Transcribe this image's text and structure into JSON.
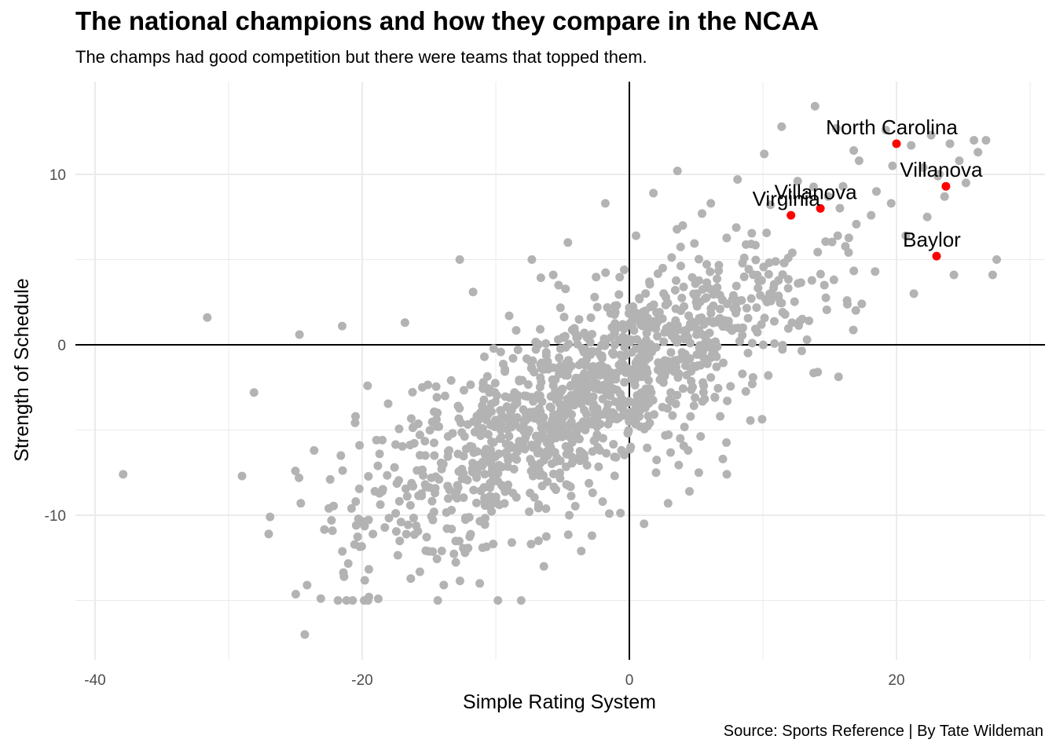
{
  "title": "The national champions and how they compare in the NCAA",
  "subtitle": "The champs had good competition but there were teams that topped them.",
  "caption": "Source: Sports Reference | By Tate Wildeman",
  "colors": {
    "points": "#b3b3b3",
    "highlight": "#ff0000",
    "grid": "#ebebeb",
    "zero_lines": "#000000"
  },
  "chart_data": {
    "type": "scatter",
    "xlabel": "Simple Rating System",
    "ylabel": "Strength of Schedule",
    "xlim": [
      -41.5,
      31
    ],
    "ylim": [
      -18.5,
      15.5
    ],
    "x_ticks": [
      -40,
      -20,
      0,
      20
    ],
    "y_ticks": [
      -10,
      0,
      10
    ],
    "x_tick_labels": [
      "-40",
      "-20",
      "0",
      "20"
    ],
    "y_tick_labels": [
      "-10",
      "0",
      "10"
    ],
    "reference_lines": {
      "x": 0,
      "y": 0
    },
    "grid": true,
    "highlighted": [
      {
        "label": "North Carolina",
        "x": 20.0,
        "y": 11.8
      },
      {
        "label": "Villanova",
        "x": 23.7,
        "y": 9.3
      },
      {
        "label": "Villanova",
        "x": 14.3,
        "y": 8.0
      },
      {
        "label": "Virginia",
        "x": 12.1,
        "y": 7.6
      },
      {
        "label": "Baylor",
        "x": 23.0,
        "y": 5.2
      }
    ],
    "points": [
      [
        -37.9,
        -7.6
      ],
      [
        -31.6,
        1.6
      ],
      [
        -28.1,
        -2.8
      ],
      [
        -29.0,
        -7.7
      ],
      [
        -26.9,
        -10.1
      ],
      [
        -27.0,
        -11.1
      ],
      [
        -24.7,
        0.6
      ],
      [
        -24.3,
        -17.0
      ],
      [
        -25.0,
        -7.4
      ],
      [
        -24.6,
        -9.3
      ],
      [
        -23.6,
        -6.2
      ],
      [
        -22.5,
        -9.6
      ],
      [
        -22.3,
        -10.3
      ],
      [
        -22.4,
        -7.9
      ],
      [
        -21.6,
        -6.5
      ],
      [
        -21.5,
        1.1
      ],
      [
        -20.5,
        -4.2
      ],
      [
        -20.2,
        -5.9
      ],
      [
        -20.8,
        -9.6
      ],
      [
        -19.6,
        -2.4
      ],
      [
        -19.2,
        -11.1
      ],
      [
        -18.8,
        -14.9
      ],
      [
        -18.7,
        -6.4
      ],
      [
        -18.5,
        -8.6
      ],
      [
        -17.1,
        -10.4
      ],
      [
        -16.8,
        1.3
      ],
      [
        -16.2,
        -8.3
      ],
      [
        -15.5,
        -2.5
      ],
      [
        -14.4,
        -4.8
      ],
      [
        -13.5,
        -6.2
      ],
      [
        -12.7,
        5.0
      ],
      [
        -11.7,
        3.1
      ],
      [
        -12.3,
        -12.2
      ],
      [
        -11.2,
        -14.0
      ],
      [
        -10.0,
        -9.1
      ],
      [
        -9.5,
        -4.2
      ],
      [
        -9.0,
        1.7
      ],
      [
        -8.6,
        -2.8
      ],
      [
        -8.1,
        -15.0
      ],
      [
        -7.3,
        5.0
      ],
      [
        -6.8,
        -11.5
      ],
      [
        -6.1,
        -6.5
      ],
      [
        -5.7,
        4.1
      ],
      [
        -5.3,
        3.5
      ],
      [
        -4.8,
        0.5
      ],
      [
        -4.6,
        6.0
      ],
      [
        -3.6,
        -12.1
      ],
      [
        -3.3,
        -5.0
      ],
      [
        -2.6,
        2.8
      ],
      [
        -2.0,
        -9.2
      ],
      [
        -1.8,
        8.3
      ],
      [
        -1.4,
        -2.1
      ],
      [
        -1.0,
        -6.6
      ],
      [
        -0.5,
        1.2
      ],
      [
        0.5,
        6.4
      ],
      [
        0.8,
        -4.8
      ],
      [
        1.5,
        3.7
      ],
      [
        1.8,
        8.9
      ],
      [
        2.0,
        -7.5
      ],
      [
        2.5,
        4.5
      ],
      [
        3.1,
        -2.8
      ],
      [
        3.6,
        10.2
      ],
      [
        4.0,
        7.0
      ],
      [
        4.4,
        -6.2
      ],
      [
        5.0,
        2.5
      ],
      [
        5.2,
        -7.5
      ],
      [
        6.1,
        8.3
      ],
      [
        6.8,
        -4.2
      ],
      [
        7.0,
        -6.7
      ],
      [
        7.3,
        -7.6
      ],
      [
        8.1,
        9.7
      ],
      [
        8.6,
        5.1
      ],
      [
        9.2,
        -2.3
      ],
      [
        9.8,
        2.9
      ],
      [
        10.1,
        11.2
      ],
      [
        11.4,
        12.8
      ],
      [
        12.2,
        5.4
      ],
      [
        13.3,
        0.3
      ],
      [
        13.9,
        14.0
      ],
      [
        14.1,
        -1.6
      ],
      [
        14.6,
        3.5
      ],
      [
        15.5,
        12.7
      ],
      [
        15.6,
        6.4
      ],
      [
        16.3,
        2.6
      ],
      [
        16.8,
        11.4
      ],
      [
        17.4,
        2.4
      ],
      [
        18.1,
        7.6
      ],
      [
        18.4,
        4.3
      ],
      [
        19.2,
        12.6
      ],
      [
        19.7,
        10.5
      ],
      [
        20.7,
        6.4
      ],
      [
        21.3,
        3.0
      ],
      [
        22.0,
        10.4
      ],
      [
        22.3,
        7.5
      ],
      [
        23.1,
        9.9
      ],
      [
        24.0,
        11.8
      ],
      [
        24.3,
        4.1
      ],
      [
        25.2,
        9.5
      ],
      [
        26.1,
        11.3
      ],
      [
        26.7,
        12.0
      ],
      [
        27.2,
        4.1
      ],
      [
        27.5,
        5.0
      ],
      [
        -13.8,
        -3.0
      ],
      [
        -14.6,
        -6.5
      ],
      [
        -12.9,
        -9.0
      ],
      [
        -11.0,
        -7.1
      ],
      [
        -8.8,
        -11.6
      ],
      [
        -7.5,
        -9.8
      ],
      [
        -6.4,
        -13.0
      ],
      [
        -5.5,
        -8.5
      ],
      [
        -4.5,
        -10.0
      ],
      [
        -2.8,
        -11.2
      ],
      [
        -1.5,
        -9.9
      ],
      [
        1.1,
        -10.5
      ],
      [
        2.9,
        -9.3
      ],
      [
        4.5,
        -8.6
      ],
      [
        8.5,
        1.0
      ],
      [
        10.4,
        -1.8
      ],
      [
        11.6,
        4.8
      ],
      [
        12.6,
        9.6
      ],
      [
        14.9,
        8.7
      ],
      [
        16.0,
        9.3
      ],
      [
        17.2,
        10.8
      ],
      [
        18.5,
        9.0
      ],
      [
        19.6,
        8.3
      ],
      [
        21.1,
        11.7
      ],
      [
        22.6,
        12.3
      ],
      [
        23.6,
        8.7
      ],
      [
        24.7,
        10.8
      ],
      [
        25.8,
        12.0
      ]
    ]
  }
}
